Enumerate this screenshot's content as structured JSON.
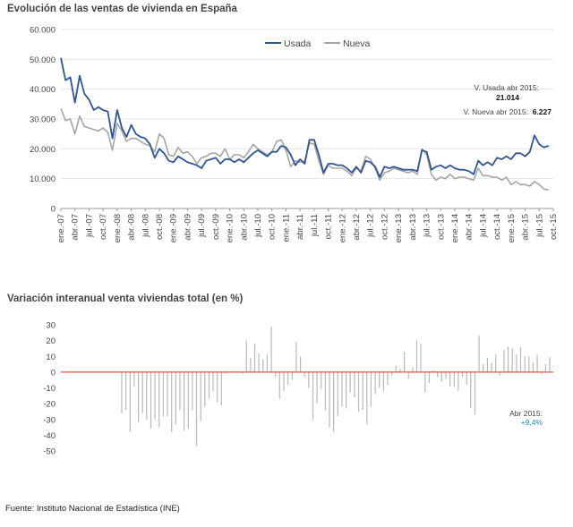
{
  "chart_data": [
    {
      "type": "line",
      "title": "Evolución de las ventas de vivienda en España",
      "ylim": [
        0,
        60000
      ],
      "yticks": [
        "60.000",
        "50.000",
        "40.000",
        "30.000",
        "20.000",
        "10.000",
        "0"
      ],
      "yticks_values": [
        60000,
        50000,
        40000,
        30000,
        20000,
        10000,
        0
      ],
      "xlim": [
        "2007-01",
        "2015-10"
      ],
      "xtick_labels": [
        "ene.-07",
        "abr.-07",
        "jul.-07",
        "oct.-07",
        "ene.-08",
        "abr.-08",
        "jul.-08",
        "oct.-08",
        "ene.-09",
        "abr.-09",
        "jul.-09",
        "oct.-09",
        "ene.-10",
        "abr.-10",
        "jul.-10",
        "oct.-10",
        "ene.-11",
        "abr.-11",
        "jul.-11",
        "oct.-11",
        "ene.-12",
        "abr.-12",
        "jul.-12",
        "oct.-12",
        "ene.-13",
        "abr.-13",
        "jul.-13",
        "oct.-13",
        "ene.-14",
        "abr.-14",
        "jul.-14",
        "oct.-14",
        "ene.-15",
        "abr.-15",
        "jul.-15",
        "oct.-15"
      ],
      "legend": {
        "placement": "top-center"
      },
      "series": [
        {
          "name": "Usada",
          "color": "#2f5597",
          "values": [
            50500,
            43000,
            44000,
            35500,
            44500,
            38500,
            36500,
            33000,
            34000,
            33000,
            32500,
            23500,
            33000,
            27000,
            24000,
            28000,
            25000,
            24000,
            23500,
            21500,
            17000,
            20000,
            18500,
            16000,
            15500,
            17500,
            16500,
            15500,
            15000,
            14500,
            13500,
            16000,
            16500,
            17000,
            15000,
            16500,
            16500,
            15500,
            16500,
            15500,
            17000,
            18500,
            19500,
            18500,
            17500,
            19000,
            19000,
            21000,
            20500,
            18000,
            14500,
            16500,
            15000,
            23000,
            23000,
            18000,
            12000,
            15000,
            15000,
            14500,
            14500,
            13500,
            12000,
            14000,
            12000,
            16000,
            15500,
            14000,
            10500,
            14000,
            13500,
            14000,
            13500,
            13000,
            13000,
            13000,
            12500,
            19500,
            19000,
            13000,
            14000,
            14500,
            13500,
            14500,
            13500,
            13000,
            13000,
            12500,
            11500,
            16000,
            14500,
            15500,
            14500,
            17000,
            16500,
            17500,
            16500,
            18500,
            18500,
            17500,
            19000,
            24500,
            21500,
            20500,
            21014
          ]
        },
        {
          "name": "Nueva",
          "color": "#a6a6a6",
          "values": [
            33500,
            29500,
            30000,
            25000,
            31000,
            27500,
            27000,
            26500,
            26000,
            27000,
            25500,
            19500,
            28500,
            26000,
            22500,
            23500,
            23500,
            22500,
            21500,
            21000,
            19000,
            25000,
            23500,
            18000,
            17500,
            20500,
            18500,
            19000,
            17500,
            15000,
            17000,
            17500,
            18500,
            18500,
            17500,
            20000,
            16500,
            18000,
            18000,
            17000,
            19000,
            21500,
            20000,
            19000,
            18000,
            19000,
            22500,
            23000,
            19500,
            14000,
            16000,
            15500,
            16000,
            22000,
            21500,
            16000,
            11500,
            14500,
            13500,
            13500,
            13500,
            12500,
            11000,
            13500,
            12500,
            17500,
            16500,
            13500,
            9500,
            12000,
            12500,
            13500,
            13000,
            12500,
            12000,
            12500,
            11500,
            20000,
            18000,
            11500,
            9500,
            10500,
            10000,
            11500,
            10000,
            10500,
            10500,
            10000,
            9500,
            13500,
            11000,
            11000,
            10500,
            10500,
            9500,
            10500,
            8000,
            9000,
            8000,
            8000,
            7500,
            9000,
            8000,
            6500,
            6227
          ]
        }
      ],
      "annotations": [
        {
          "label": "V. Usada abr 2015:",
          "value": "21.014"
        },
        {
          "label": "V. Nueva abr 2015:",
          "value": "6.227"
        }
      ]
    },
    {
      "type": "bar",
      "title": "Variación interanual venta viviendas total (en %)",
      "ylim": [
        -50,
        30
      ],
      "yticks": [
        "30",
        "20",
        "10",
        "0",
        "-10",
        "-20",
        "-30",
        "-40",
        "-50"
      ],
      "yticks_values": [
        30,
        20,
        10,
        0,
        -10,
        -20,
        -30,
        -40,
        -50
      ],
      "bar_color": "#b8b8b8",
      "zero_line_color": "#e8534a",
      "series": [
        {
          "name": "",
          "values": [
            -26,
            -24,
            -38,
            -9,
            -32,
            -26,
            -30,
            -36,
            -30,
            -35,
            -28,
            -28,
            -38,
            -33,
            -24,
            -37,
            -36,
            -24,
            -47,
            -31,
            -22,
            -17,
            -12,
            -19,
            -21,
            -1,
            0,
            0,
            0,
            -1,
            20,
            9,
            18,
            12,
            8,
            11,
            29,
            -3,
            -17,
            -12,
            -8,
            -5,
            19,
            10,
            -3,
            -10,
            -30,
            -20,
            -11,
            -24,
            -35,
            -38,
            -28,
            -22,
            -23,
            -13,
            -16,
            -25,
            -24,
            -33,
            -22,
            -14,
            -10,
            -12,
            -8,
            -2,
            4,
            2,
            13,
            -4,
            3,
            20,
            18,
            -13,
            -7,
            1,
            -3,
            -6,
            -4,
            -9,
            -9,
            -12,
            -3,
            -8,
            -23,
            -27,
            23,
            5,
            9,
            6,
            11,
            -2,
            14,
            16,
            15,
            11,
            16,
            10,
            10,
            6,
            11,
            -1,
            5,
            9.4
          ]
        }
      ],
      "annotations": [
        {
          "label": "Abr 2015:",
          "value": "+9,4%"
        }
      ]
    }
  ],
  "source": "Fuente: Instituto Nacional de Estadística (INE)"
}
